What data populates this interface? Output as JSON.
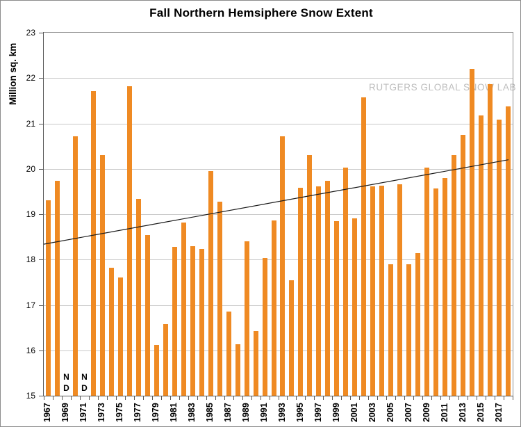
{
  "chart": {
    "title": "Fall Northern Hemsiphere Snow Extent",
    "ylabel": "Million sq. km",
    "watermark": "RUTGERS GLOBAL SNOW LAB"
  },
  "chart_data": {
    "type": "bar",
    "title": "Fall Northern Hemsiphere Snow Extent",
    "xlabel": "",
    "ylabel": "Million sq. km",
    "ylim": [
      15,
      23
    ],
    "yticks": [
      15,
      16,
      17,
      18,
      19,
      20,
      21,
      22,
      23
    ],
    "grid": "horizontal",
    "legend": "none",
    "watermark": "RUTGERS GLOBAL SNOW LAB",
    "categories": [
      1967,
      1968,
      1969,
      1970,
      1971,
      1972,
      1973,
      1974,
      1975,
      1976,
      1977,
      1978,
      1979,
      1980,
      1981,
      1982,
      1983,
      1984,
      1985,
      1986,
      1987,
      1988,
      1989,
      1990,
      1991,
      1992,
      1993,
      1994,
      1995,
      1996,
      1997,
      1998,
      1999,
      2000,
      2001,
      2002,
      2003,
      2004,
      2005,
      2006,
      2007,
      2008,
      2009,
      2010,
      2011,
      2012,
      2013,
      2014,
      2015,
      2016,
      2017,
      2018
    ],
    "values": [
      19.31,
      19.73,
      null,
      20.71,
      null,
      21.71,
      20.31,
      17.82,
      17.6,
      21.82,
      19.33,
      18.54,
      16.12,
      16.58,
      18.28,
      18.82,
      18.3,
      18.24,
      19.95,
      19.27,
      16.86,
      16.13,
      18.4,
      16.43,
      18.04,
      18.86,
      20.72,
      17.55,
      19.59,
      20.31,
      19.61,
      19.74,
      18.85,
      20.02,
      18.91,
      21.57,
      19.61,
      19.63,
      17.89,
      19.66,
      17.9,
      18.14,
      20.03,
      19.57,
      19.79,
      20.31,
      20.74,
      22.21,
      21.17,
      21.87,
      21.08,
      21.38
    ],
    "missing_years": [
      1969,
      1971
    ],
    "missing_marker": [
      "N",
      "D"
    ],
    "xtick_labels": [
      "1967",
      "1969",
      "1971",
      "1973",
      "1975",
      "1977",
      "1979",
      "1981",
      "1983",
      "1985",
      "1987",
      "1989",
      "1991",
      "1993",
      "1995",
      "1997",
      "1999",
      "2001",
      "2003",
      "2005",
      "2007",
      "2009",
      "2011",
      "2013",
      "2015",
      "2017"
    ],
    "bar_color": "#ef8a23",
    "trend_line": {
      "left_edge_value": 18.34,
      "right_edge_value": 20.2,
      "color": "#1a1a1a",
      "description": "linear trend"
    },
    "colors": {
      "grid": "#c9c9c9",
      "axis": "#595959",
      "border": "#8c8c8c",
      "watermark": "#bdbdbd"
    }
  }
}
